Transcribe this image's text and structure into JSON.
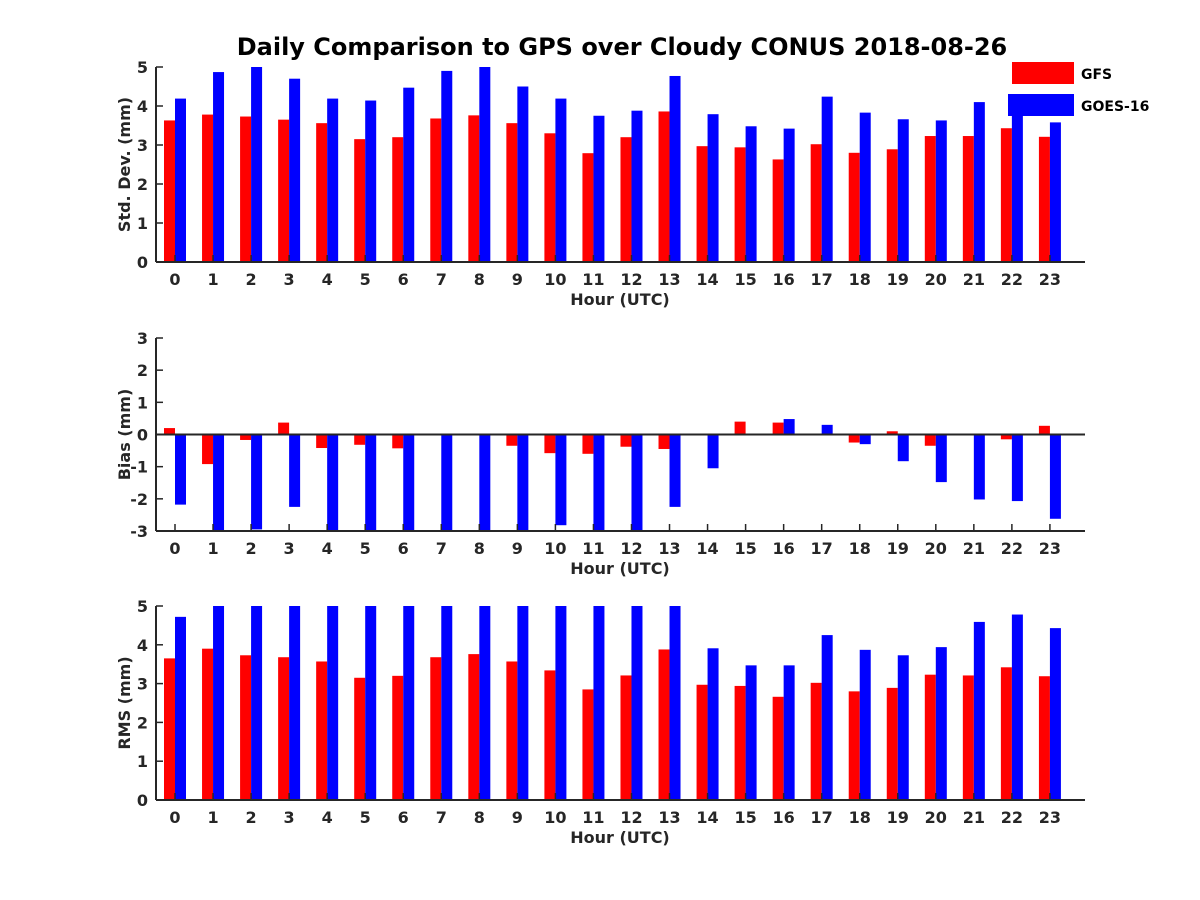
{
  "chart_data": {
    "title": "Daily Comparison to GPS over Cloudy CONUS 2018-08-26",
    "legend": {
      "placement": "top-right",
      "entries": [
        {
          "name": "GFS",
          "color": "#ff0000"
        },
        {
          "name": "GOES-16",
          "color": "#0000ff"
        }
      ]
    },
    "panels": [
      {
        "type": "bar",
        "ylabel": "Std. Dev. (mm)",
        "xlabel": "Hour (UTC)",
        "ylim": [
          0,
          5
        ],
        "yticks": [
          0,
          1,
          2,
          3,
          4,
          5
        ],
        "categories": [
          "0",
          "1",
          "2",
          "3",
          "4",
          "5",
          "6",
          "7",
          "8",
          "9",
          "10",
          "11",
          "12",
          "13",
          "14",
          "15",
          "16",
          "17",
          "18",
          "19",
          "20",
          "21",
          "22",
          "23"
        ],
        "series": [
          {
            "name": "GFS",
            "color": "#ff0000",
            "values": [
              3.63,
              3.78,
              3.73,
              3.65,
              3.56,
              3.15,
              3.2,
              3.68,
              3.76,
              3.56,
              3.3,
              2.79,
              3.2,
              3.86,
              2.97,
              2.94,
              2.63,
              3.02,
              2.8,
              2.89,
              3.23,
              3.23,
              3.43,
              3.21
            ]
          },
          {
            "name": "GOES-16",
            "color": "#0000ff",
            "values": [
              4.19,
              4.87,
              5.0,
              4.7,
              4.19,
              4.14,
              4.47,
              4.9,
              5.0,
              4.5,
              4.19,
              3.75,
              3.88,
              4.77,
              3.79,
              3.48,
              3.42,
              4.24,
              3.83,
              3.66,
              3.63,
              4.1,
              3.83,
              3.58
            ]
          }
        ]
      },
      {
        "type": "bar",
        "ylabel": "Bias (mm)",
        "xlabel": "Hour (UTC)",
        "ylim": [
          -3,
          3
        ],
        "yticks": [
          -3,
          -2,
          -1,
          0,
          1,
          2,
          3
        ],
        "zero_line": true,
        "categories": [
          "0",
          "1",
          "2",
          "3",
          "4",
          "5",
          "6",
          "7",
          "8",
          "9",
          "10",
          "11",
          "12",
          "13",
          "14",
          "15",
          "16",
          "17",
          "18",
          "19",
          "20",
          "21",
          "22",
          "23"
        ],
        "series": [
          {
            "name": "GFS",
            "color": "#ff0000",
            "values": [
              0.2,
              -0.92,
              -0.17,
              0.37,
              -0.42,
              -0.32,
              -0.43,
              -0.02,
              0.03,
              -0.35,
              -0.58,
              -0.6,
              -0.38,
              -0.45,
              -0.03,
              0.4,
              0.37,
              0.0,
              -0.25,
              0.1,
              -0.35,
              0.0,
              -0.15,
              0.27
            ]
          },
          {
            "name": "GOES-16",
            "color": "#0000ff",
            "values": [
              -2.18,
              -3.0,
              -2.95,
              -2.25,
              -3.0,
              -3.0,
              -3.0,
              -3.0,
              -3.0,
              -3.0,
              -2.82,
              -3.0,
              -3.0,
              -2.25,
              -1.05,
              0.0,
              0.48,
              0.3,
              -0.3,
              -0.83,
              -1.48,
              -2.02,
              -2.07,
              -2.62
            ]
          }
        ]
      },
      {
        "type": "bar",
        "ylabel": "RMS (mm)",
        "xlabel": "Hour (UTC)",
        "ylim": [
          0,
          5
        ],
        "yticks": [
          0,
          1,
          2,
          3,
          4,
          5
        ],
        "categories": [
          "0",
          "1",
          "2",
          "3",
          "4",
          "5",
          "6",
          "7",
          "8",
          "9",
          "10",
          "11",
          "12",
          "13",
          "14",
          "15",
          "16",
          "17",
          "18",
          "19",
          "20",
          "21",
          "22",
          "23"
        ],
        "series": [
          {
            "name": "GFS",
            "color": "#ff0000",
            "values": [
              3.65,
              3.9,
              3.73,
              3.68,
              3.57,
              3.15,
              3.2,
              3.68,
              3.76,
              3.57,
              3.34,
              2.85,
              3.21,
              3.88,
              2.97,
              2.94,
              2.66,
              3.02,
              2.8,
              2.89,
              3.23,
              3.21,
              3.42,
              3.19
            ]
          },
          {
            "name": "GOES-16",
            "color": "#0000ff",
            "values": [
              4.72,
              5.0,
              5.0,
              5.0,
              5.0,
              5.0,
              5.0,
              5.0,
              5.0,
              5.0,
              5.0,
              5.0,
              5.0,
              5.0,
              3.91,
              3.47,
              3.47,
              4.25,
              3.87,
              3.73,
              3.94,
              4.59,
              4.78,
              4.43
            ]
          }
        ]
      }
    ]
  }
}
